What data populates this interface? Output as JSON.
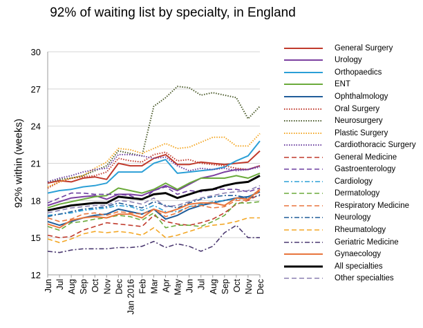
{
  "chart_data": {
    "type": "line",
    "title": "92% of waiting list by specialty, in England",
    "ylabel": "92% within (weeks)",
    "xlabel": "",
    "ylim": [
      12,
      30
    ],
    "yticks": [
      12,
      15,
      18,
      21,
      24,
      27,
      30
    ],
    "grid": "horizontal",
    "legend": "right",
    "x": [
      "Jun",
      "Jul",
      "Aug",
      "Sep",
      "Oct",
      "Nov",
      "Dec",
      "Jan 2016",
      "Feb",
      "Mar",
      "Apr",
      "May",
      "Jun",
      "Jul",
      "Aug",
      "Sep",
      "Oct",
      "Nov",
      "Dec"
    ],
    "series": [
      {
        "name": "General Surgery",
        "color": "#c0392b",
        "dash": "solid",
        "width": 2,
        "values": [
          19.4,
          19.6,
          19.5,
          19.8,
          19.9,
          19.7,
          21.0,
          20.8,
          20.8,
          21.4,
          21.7,
          20.9,
          20.9,
          21.1,
          21.0,
          20.9,
          21.0,
          21.1,
          22.0
        ]
      },
      {
        "name": "Urology",
        "color": "#7b3fa0",
        "dash": "solid",
        "width": 2,
        "values": [
          17.6,
          17.9,
          18.2,
          18.3,
          18.4,
          18.1,
          18.5,
          18.5,
          18.4,
          18.8,
          19.2,
          18.8,
          19.3,
          19.8,
          20.0,
          20.3,
          20.5,
          20.5,
          20.8
        ]
      },
      {
        "name": "Orthopaedics",
        "color": "#2a9fd6",
        "dash": "solid",
        "width": 2,
        "values": [
          18.6,
          18.8,
          18.9,
          19.1,
          19.2,
          19.4,
          20.3,
          20.3,
          20.3,
          21.0,
          21.3,
          20.2,
          20.3,
          20.4,
          20.5,
          20.7,
          21.2,
          21.6,
          22.8
        ]
      },
      {
        "name": "ENT",
        "color": "#6aaa3a",
        "dash": "solid",
        "width": 2,
        "values": [
          17.4,
          17.7,
          17.9,
          18.1,
          18.3,
          18.4,
          19.0,
          18.8,
          18.6,
          18.9,
          19.4,
          18.9,
          19.4,
          19.8,
          19.8,
          19.8,
          20.0,
          19.8,
          20.2
        ]
      },
      {
        "name": "Ophthalmology",
        "color": "#1f5c99",
        "dash": "solid",
        "width": 2,
        "values": [
          16.3,
          16.0,
          16.3,
          16.6,
          16.8,
          16.9,
          17.3,
          17.1,
          16.9,
          17.3,
          16.5,
          16.8,
          17.3,
          17.6,
          17.8,
          18.0,
          18.2,
          18.3,
          18.7
        ]
      },
      {
        "name": "Oral Surgery",
        "color": "#c0392b",
        "dash": "1.5,2",
        "width": 2,
        "values": [
          19.0,
          19.5,
          19.8,
          19.9,
          20.0,
          20.3,
          21.4,
          21.2,
          21.1,
          21.7,
          21.9,
          21.2,
          21.3,
          21.0,
          20.9,
          20.8,
          20.6,
          20.5,
          20.8
        ]
      },
      {
        "name": "Neurosurgery",
        "color": "#4a5a2a",
        "dash": "1.5,2",
        "width": 2,
        "values": [
          19.5,
          19.7,
          19.8,
          20.0,
          20.4,
          20.8,
          22.0,
          21.8,
          21.6,
          25.6,
          26.3,
          27.2,
          27.1,
          26.5,
          26.7,
          26.5,
          26.3,
          24.6,
          25.6
        ]
      },
      {
        "name": "Plastic Surgery",
        "color": "#f3a623",
        "dash": "1.5,2",
        "width": 2,
        "values": [
          19.1,
          19.5,
          19.8,
          20.0,
          20.6,
          21.1,
          22.2,
          22.1,
          21.8,
          22.2,
          22.6,
          22.2,
          22.3,
          22.7,
          23.1,
          23.1,
          22.4,
          22.4,
          23.4
        ]
      },
      {
        "name": "Cardiothoracic Surgery",
        "color": "#6b3fa0",
        "dash": "1.5,2",
        "width": 2,
        "values": [
          19.5,
          19.8,
          20.0,
          20.3,
          20.5,
          20.6,
          21.7,
          21.7,
          21.6,
          21.4,
          21.5,
          20.8,
          20.4,
          20.6,
          20.5,
          20.6,
          20.4,
          20.5,
          20.7
        ]
      },
      {
        "name": "General Medicine",
        "color": "#c0392b",
        "dash": "7,4",
        "width": 1.6,
        "values": [
          15.2,
          15.0,
          15.1,
          15.6,
          15.9,
          16.2,
          16.1,
          16.0,
          15.9,
          16.8,
          16.3,
          16.1,
          16.0,
          16.2,
          16.5,
          17.0,
          17.7,
          18.0,
          18.5
        ]
      },
      {
        "name": "Gastroenterology",
        "color": "#6b3fa0",
        "dash": "7,4",
        "width": 1.6,
        "values": [
          17.8,
          18.2,
          18.6,
          18.6,
          18.5,
          18.5,
          18.5,
          18.4,
          18.0,
          18.8,
          19.1,
          18.5,
          18.8,
          18.7,
          18.9,
          18.9,
          18.9,
          18.7,
          19.0
        ]
      },
      {
        "name": "Cardiology",
        "color": "#2a9fd6",
        "dash": "7,3,2,3",
        "width": 1.6,
        "values": [
          16.8,
          16.9,
          17.0,
          17.2,
          17.3,
          17.4,
          17.6,
          17.5,
          17.2,
          17.6,
          17.1,
          17.1,
          17.5,
          17.7,
          17.9,
          18.0,
          18.1,
          18.2,
          18.9
        ]
      },
      {
        "name": "Dermatology",
        "color": "#6aaa3a",
        "dash": "7,4",
        "width": 1.6,
        "values": [
          15.9,
          15.6,
          16.2,
          16.3,
          16.5,
          16.6,
          16.8,
          16.7,
          16.4,
          17.0,
          15.8,
          16.0,
          16.0,
          15.9,
          16.3,
          16.8,
          17.8,
          17.8,
          17.9
        ]
      },
      {
        "name": "Respiratory Medicine",
        "color": "#e8743b",
        "dash": "7,4",
        "width": 1.6,
        "values": [
          16.6,
          16.3,
          16.5,
          16.9,
          17.0,
          16.8,
          17.1,
          17.0,
          16.9,
          17.3,
          16.7,
          17.0,
          17.5,
          17.6,
          17.4,
          17.5,
          18.0,
          18.0,
          18.8
        ]
      },
      {
        "name": "Neurology",
        "color": "#1f5c99",
        "dash": "7,3,2,3",
        "width": 1.6,
        "values": [
          16.7,
          16.9,
          17.1,
          17.3,
          17.4,
          17.5,
          17.8,
          17.6,
          17.4,
          17.9,
          17.6,
          17.4,
          17.8,
          18.1,
          18.3,
          18.4,
          18.4,
          18.2,
          18.4
        ]
      },
      {
        "name": "Rheumatology",
        "color": "#f3a623",
        "dash": "7,4",
        "width": 1.6,
        "values": [
          14.9,
          14.6,
          14.9,
          15.3,
          15.5,
          15.4,
          15.5,
          15.4,
          15.2,
          15.8,
          15.0,
          15.2,
          15.5,
          15.8,
          16.0,
          16.1,
          16.3,
          16.6,
          16.6
        ]
      },
      {
        "name": "Geriatric Medicine",
        "color": "#4a3870",
        "dash": "7,3,2,3",
        "width": 1.6,
        "values": [
          13.9,
          13.8,
          14.0,
          14.1,
          14.1,
          14.1,
          14.2,
          14.2,
          14.3,
          14.7,
          14.2,
          14.5,
          14.3,
          13.9,
          14.3,
          15.4,
          16.0,
          15.0,
          15.0
        ]
      },
      {
        "name": "Gynaecology",
        "color": "#e8743b",
        "dash": "solid",
        "width": 2,
        "values": [
          16.1,
          15.8,
          16.4,
          16.6,
          16.7,
          16.6,
          16.9,
          16.9,
          16.6,
          17.3,
          17.0,
          17.3,
          17.7,
          17.8,
          17.8,
          17.6,
          18.2,
          18.1,
          18.9
        ]
      },
      {
        "name": "All specialties",
        "color": "#000000",
        "dash": "solid",
        "width": 3,
        "values": [
          17.2,
          17.4,
          17.6,
          17.7,
          17.8,
          17.8,
          18.3,
          18.2,
          18.1,
          18.5,
          18.6,
          18.2,
          18.5,
          18.8,
          18.9,
          19.2,
          19.4,
          19.5,
          20.0
        ]
      },
      {
        "name": "Other specialties",
        "color": "#8a7fb0",
        "dash": "7,4",
        "width": 1.6,
        "values": [
          17.0,
          17.2,
          17.4,
          17.5,
          17.6,
          17.6,
          18.0,
          17.9,
          17.7,
          18.2,
          17.5,
          17.6,
          17.9,
          18.2,
          18.4,
          18.6,
          18.7,
          18.8,
          19.2
        ]
      }
    ]
  }
}
